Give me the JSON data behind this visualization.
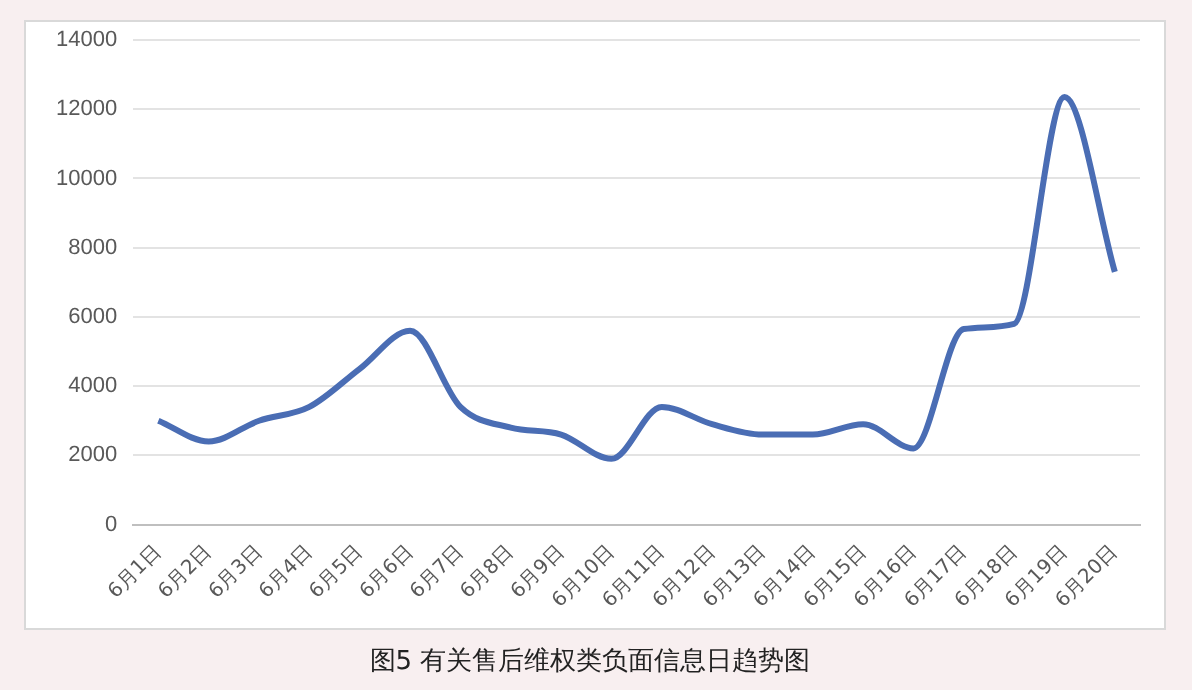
{
  "chart_data": {
    "type": "line",
    "title": "图5 有关售后维权类负面信息日趋势图",
    "categories": [
      "6月1日",
      "6月2日",
      "6月3日",
      "6月4日",
      "6月5日",
      "6月6日",
      "6月7日",
      "6月8日",
      "6月9日",
      "6月10日",
      "6月11日",
      "6月12日",
      "6月13日",
      "6月14日",
      "6月15日",
      "6月16日",
      "6月17日",
      "6月18日",
      "6月19日",
      "6月20日"
    ],
    "series": [
      {
        "color": "#4a6db4",
        "values": [
          3000,
          2400,
          3000,
          3400,
          4500,
          5600,
          3400,
          2800,
          2600,
          1900,
          3400,
          2900,
          2600,
          2600,
          2900,
          2200,
          5650,
          5800,
          12350,
          7300
        ]
      }
    ],
    "ylim": [
      0,
      14000
    ],
    "yticks": [
      0,
      2000,
      4000,
      6000,
      8000,
      10000,
      12000,
      14000
    ],
    "grid": "y",
    "legend": false,
    "marker": "none",
    "line_style": "solid"
  }
}
